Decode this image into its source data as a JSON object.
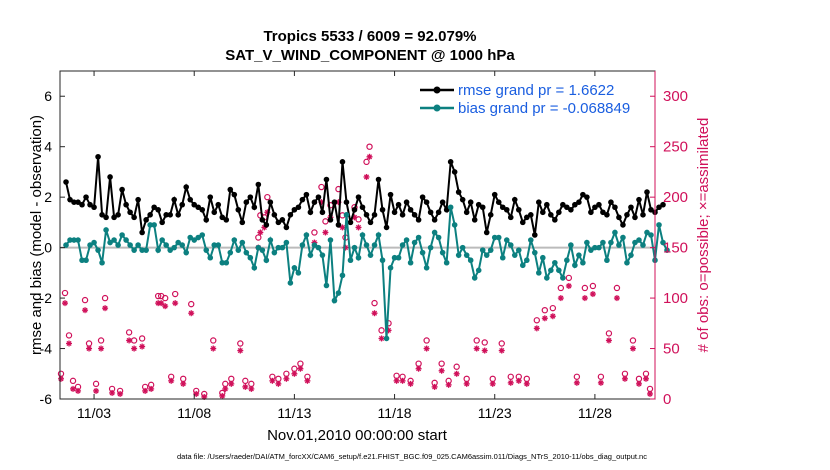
{
  "chart_data": {
    "type": "line",
    "title": "Tropics 5533 / 6009 = 92.079%",
    "subtitle": "SAT_V_WIND_COMPONENT @ 1000 hPa",
    "xlabel": "Nov.01,2010 00:00:00 start",
    "ylabel_left": "rmse and bias (model - observation)",
    "ylabel_right": "# of obs: o=possible; ×=assimilated",
    "footnote": "data file: /Users/raeder/DAI/ATM_forcXX/CAM6_setup/f.e21.FHIST_BGC.f09_025.CAM6assim.011/Diags_NTrS_2010-11/obs_diag_output.nc",
    "xlim": [
      1.3,
      31.0
    ],
    "ylim_left": [
      -6,
      7
    ],
    "ylim_right": [
      0,
      325
    ],
    "x_ticks": [
      {
        "pos": 3,
        "label": "11/03"
      },
      {
        "pos": 8,
        "label": "11/08"
      },
      {
        "pos": 13,
        "label": "11/13"
      },
      {
        "pos": 18,
        "label": "11/18"
      },
      {
        "pos": 23,
        "label": "11/23"
      },
      {
        "pos": 28,
        "label": "11/28"
      }
    ],
    "y_left_ticks": [
      "-6",
      "-4",
      "-2",
      "0",
      "2",
      "4",
      "6"
    ],
    "y_right_ticks": [
      "0",
      "50",
      "100",
      "150",
      "200",
      "250",
      "300"
    ],
    "colors": {
      "rmse": "#000000",
      "bias": "#0c8080",
      "obs": "#d0105a",
      "zero": "#bbbbbb",
      "legend_text": "#1a5ee0"
    },
    "series": [
      {
        "name": "rmse grand pr = 1.6622",
        "values": [
          2.6,
          1.9,
          1.8,
          1.8,
          1.7,
          2.0,
          1.7,
          1.6,
          3.6,
          1.3,
          1.2,
          2.8,
          1.2,
          1.3,
          2.3,
          1.7,
          1.4,
          1.2,
          1.9,
          0.6,
          1.1,
          1.3,
          1.6,
          1.5,
          1.0,
          1.3,
          1.3,
          1.9,
          1.3,
          1.7,
          2.4,
          1.9,
          1.7,
          1.6,
          1.5,
          1.1,
          2.0,
          1.4,
          1.7,
          1.2,
          1.1,
          2.3,
          2.1,
          1.5,
          1.0,
          1.8,
          2.0,
          1.6,
          2.5,
          1.1,
          0.9,
          1.8,
          1.3,
          1.0,
          1.1,
          0.8,
          1.3,
          1.5,
          1.6,
          1.9,
          2.1,
          1.4,
          1.8,
          2.0,
          1.4,
          2.7,
          1.1,
          1.8,
          0.9,
          3.4,
          1.8,
          1.0,
          1.5,
          2.0,
          1.6,
          1.3,
          1.0,
          1.3,
          2.7,
          1.5,
          0.8,
          2.1,
          1.4,
          1.7,
          1.3,
          1.8,
          1.5,
          1.3,
          1.1,
          2.0,
          1.8,
          1.4,
          1.1,
          1.4,
          1.8,
          1.5,
          3.4,
          3.0,
          2.2,
          1.9,
          1.4,
          1.8,
          1.1,
          1.7,
          1.6,
          0.6,
          1.3,
          2.1,
          1.8,
          1.6,
          1.5,
          1.2,
          1.9,
          1.5,
          1.0,
          1.2,
          1.3,
          0.5,
          1.8,
          1.4,
          1.7,
          1.3,
          1.1,
          1.4,
          1.7,
          1.6,
          1.5,
          1.7,
          1.8,
          2.1,
          2.0,
          1.4,
          1.6,
          1.7,
          1.4,
          1.3,
          1.8,
          1.6,
          1.2,
          0.9,
          1.3,
          1.6,
          1.2,
          1.9,
          1.3,
          2.2,
          1.5,
          1.4,
          1.6,
          1.7
        ]
      },
      {
        "name": "bias grand pr = -0.068849",
        "values": [
          0.1,
          0.3,
          0.3,
          0.3,
          -0.5,
          -0.5,
          0.1,
          0.2,
          -0.1,
          -0.6,
          0.7,
          0.2,
          0.3,
          0.1,
          0.5,
          0.3,
          0.1,
          -0.1,
          0.1,
          -0.1,
          -0.1,
          0.9,
          0.9,
          -0.1,
          0.3,
          0.1,
          -0.1,
          0.0,
          0.2,
          0.1,
          -0.2,
          0.4,
          0.3,
          0.4,
          0.5,
          -0.1,
          -0.4,
          0.1,
          0.1,
          -0.6,
          -0.6,
          -0.2,
          0.3,
          -0.1,
          0.2,
          -0.2,
          -0.4,
          -0.8,
          0.0,
          -0.1,
          -0.5,
          0.3,
          -0.2,
          0.0,
          0.0,
          0.2,
          -1.4,
          -0.8,
          -1.0,
          0.1,
          0.5,
          -0.3,
          0.1,
          0.0,
          -0.3,
          -1.5,
          0.3,
          -2.1,
          -1.8,
          -1.1,
          1.3,
          -0.5,
          0.0,
          -0.4,
          0.5,
          0.1,
          -0.3,
          0.1,
          0.5,
          -0.5,
          -3.6,
          -0.8,
          -0.4,
          -0.4,
          0.1,
          0.3,
          -0.6,
          0.2,
          0.4,
          -0.2,
          -0.8,
          0.0,
          0.6,
          0.4,
          -0.2,
          -0.6,
          1.6,
          0.9,
          -0.3,
          0.0,
          -0.3,
          -0.5,
          -1.2,
          -0.9,
          -0.1,
          -0.3,
          -0.1,
          0.4,
          0.4,
          -0.4,
          0.3,
          0.1,
          -0.3,
          -0.1,
          -0.7,
          -0.5,
          0.3,
          -0.2,
          -1.0,
          -0.4,
          -1.2,
          -0.9,
          -0.6,
          -0.9,
          -1.2,
          -0.5,
          0.1,
          -0.7,
          -0.3,
          -0.6,
          0.2,
          -0.1,
          0.0,
          0.0,
          0.2,
          -0.5,
          0.2,
          0.6,
          0.1,
          0.4,
          -0.6,
          -0.3,
          0.2,
          0.3,
          0.1,
          0.6,
          0.5,
          -0.5,
          0.9,
          0.2,
          -0.1
        ]
      }
    ],
    "obs_possible": [
      [
        1.35,
        25
      ],
      [
        1.55,
        105
      ],
      [
        1.75,
        63
      ],
      [
        1.95,
        18
      ],
      [
        2.2,
        12
      ],
      [
        2.55,
        98
      ],
      [
        2.75,
        55
      ],
      [
        3.1,
        15
      ],
      [
        3.35,
        58
      ],
      [
        3.55,
        100
      ],
      [
        3.9,
        10
      ],
      [
        4.3,
        8
      ],
      [
        4.75,
        66
      ],
      [
        5.0,
        58
      ],
      [
        5.4,
        60
      ],
      [
        5.55,
        12
      ],
      [
        5.85,
        14
      ],
      [
        6.2,
        102
      ],
      [
        6.35,
        102
      ],
      [
        6.55,
        100
      ],
      [
        6.85,
        22
      ],
      [
        7.05,
        104
      ],
      [
        7.45,
        20
      ],
      [
        7.85,
        94
      ],
      [
        8.1,
        8
      ],
      [
        8.5,
        5
      ],
      [
        8.95,
        58
      ],
      [
        9.4,
        6
      ],
      [
        9.55,
        15
      ],
      [
        9.85,
        20
      ],
      [
        10.3,
        55
      ],
      [
        10.55,
        18
      ],
      [
        10.85,
        15
      ],
      [
        11.2,
        160
      ],
      [
        11.3,
        182
      ],
      [
        11.5,
        180
      ],
      [
        11.65,
        200
      ],
      [
        11.9,
        22
      ],
      [
        12.2,
        20
      ],
      [
        12.6,
        25
      ],
      [
        13.0,
        30
      ],
      [
        13.3,
        35
      ],
      [
        13.65,
        22
      ],
      [
        14.0,
        165
      ],
      [
        14.35,
        210
      ],
      [
        14.55,
        176
      ],
      [
        14.8,
        192
      ],
      [
        15.2,
        208
      ],
      [
        15.4,
        182
      ],
      [
        15.55,
        160
      ],
      [
        16.0,
        190
      ],
      [
        16.2,
        178
      ],
      [
        16.6,
        235
      ],
      [
        16.75,
        250
      ],
      [
        17.0,
        95
      ],
      [
        17.35,
        68
      ],
      [
        17.7,
        75
      ],
      [
        18.1,
        23
      ],
      [
        18.4,
        22
      ],
      [
        18.8,
        18
      ],
      [
        19.2,
        35
      ],
      [
        19.6,
        58
      ],
      [
        20.0,
        16
      ],
      [
        20.35,
        35
      ],
      [
        20.7,
        18
      ],
      [
        21.1,
        32
      ],
      [
        21.6,
        20
      ],
      [
        22.1,
        58
      ],
      [
        22.5,
        56
      ],
      [
        22.9,
        20
      ],
      [
        23.35,
        55
      ],
      [
        23.8,
        22
      ],
      [
        24.2,
        22
      ],
      [
        24.6,
        20
      ],
      [
        25.1,
        78
      ],
      [
        25.5,
        88
      ],
      [
        25.9,
        90
      ],
      [
        26.3,
        110
      ],
      [
        26.7,
        120
      ],
      [
        27.1,
        22
      ],
      [
        27.5,
        110
      ],
      [
        27.9,
        112
      ],
      [
        28.3,
        22
      ],
      [
        28.7,
        65
      ],
      [
        29.1,
        110
      ],
      [
        29.5,
        25
      ],
      [
        29.9,
        58
      ],
      [
        30.2,
        20
      ],
      [
        30.55,
        25
      ],
      [
        30.75,
        10
      ]
    ],
    "obs_assimilated": [
      [
        1.35,
        20
      ],
      [
        1.55,
        95
      ],
      [
        1.75,
        55
      ],
      [
        1.95,
        10
      ],
      [
        2.2,
        8
      ],
      [
        2.55,
        88
      ],
      [
        2.75,
        50
      ],
      [
        3.1,
        8
      ],
      [
        3.35,
        50
      ],
      [
        3.55,
        90
      ],
      [
        3.9,
        6
      ],
      [
        4.3,
        5
      ],
      [
        4.75,
        58
      ],
      [
        5.0,
        50
      ],
      [
        5.4,
        52
      ],
      [
        5.55,
        8
      ],
      [
        5.85,
        10
      ],
      [
        6.2,
        95
      ],
      [
        6.35,
        95
      ],
      [
        6.55,
        92
      ],
      [
        6.85,
        18
      ],
      [
        7.05,
        95
      ],
      [
        7.45,
        15
      ],
      [
        7.85,
        85
      ],
      [
        8.1,
        5
      ],
      [
        8.5,
        2
      ],
      [
        8.95,
        50
      ],
      [
        9.4,
        3
      ],
      [
        9.55,
        10
      ],
      [
        9.85,
        15
      ],
      [
        10.3,
        48
      ],
      [
        10.55,
        12
      ],
      [
        10.85,
        10
      ],
      [
        11.2,
        150
      ],
      [
        11.3,
        165
      ],
      [
        11.5,
        170
      ],
      [
        11.65,
        185
      ],
      [
        11.9,
        18
      ],
      [
        12.2,
        15
      ],
      [
        12.6,
        20
      ],
      [
        13.0,
        25
      ],
      [
        13.3,
        30
      ],
      [
        13.65,
        18
      ],
      [
        14.0,
        155
      ],
      [
        14.35,
        195
      ],
      [
        14.55,
        165
      ],
      [
        14.8,
        180
      ],
      [
        15.2,
        195
      ],
      [
        15.4,
        170
      ],
      [
        15.55,
        150
      ],
      [
        16.0,
        180
      ],
      [
        16.2,
        170
      ],
      [
        16.6,
        220
      ],
      [
        16.75,
        240
      ],
      [
        17.0,
        85
      ],
      [
        17.35,
        60
      ],
      [
        17.7,
        68
      ],
      [
        18.1,
        18
      ],
      [
        18.4,
        18
      ],
      [
        18.8,
        15
      ],
      [
        19.2,
        30
      ],
      [
        19.6,
        50
      ],
      [
        20.0,
        12
      ],
      [
        20.35,
        28
      ],
      [
        20.7,
        14
      ],
      [
        21.1,
        25
      ],
      [
        21.6,
        15
      ],
      [
        22.1,
        50
      ],
      [
        22.5,
        48
      ],
      [
        22.9,
        15
      ],
      [
        23.35,
        48
      ],
      [
        23.8,
        16
      ],
      [
        24.2,
        18
      ],
      [
        24.6,
        15
      ],
      [
        25.1,
        70
      ],
      [
        25.5,
        80
      ],
      [
        25.9,
        82
      ],
      [
        26.3,
        100
      ],
      [
        26.7,
        112
      ],
      [
        27.1,
        16
      ],
      [
        27.5,
        100
      ],
      [
        27.9,
        104
      ],
      [
        28.3,
        16
      ],
      [
        28.7,
        58
      ],
      [
        29.1,
        100
      ],
      [
        29.5,
        20
      ],
      [
        29.9,
        50
      ],
      [
        30.2,
        15
      ],
      [
        30.55,
        20
      ],
      [
        30.75,
        5
      ]
    ]
  }
}
